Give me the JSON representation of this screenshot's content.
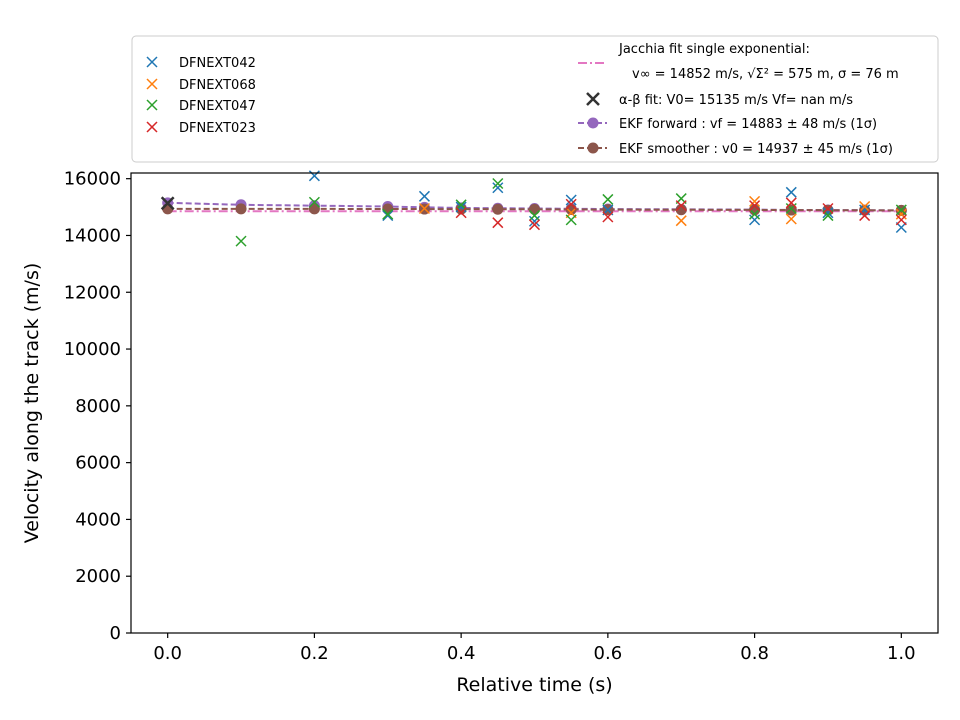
{
  "chart_data": {
    "type": "scatter",
    "xlabel": "Relative time (s)",
    "ylabel": "Velocity along the track (m/s)",
    "xlim": [
      -0.05,
      1.05
    ],
    "ylim": [
      0,
      16200
    ],
    "x_ticks": [
      0.0,
      0.2,
      0.4,
      0.6,
      0.8,
      1.0
    ],
    "x_tick_labels": [
      "0.0",
      "0.2",
      "0.4",
      "0.6",
      "0.8",
      "1.0"
    ],
    "y_ticks": [
      0,
      2000,
      4000,
      6000,
      8000,
      10000,
      12000,
      14000,
      16000
    ],
    "y_tick_labels": [
      "0",
      "2000",
      "4000",
      "6000",
      "8000",
      "10000",
      "12000",
      "14000",
      "16000"
    ],
    "grid": false,
    "legend_left_placement": "top-left",
    "legend_right_placement": "top-right",
    "series": [
      {
        "name": "DFNEXT042",
        "marker": "x",
        "color": "#1f77b4",
        "points": [
          [
            0.0,
            15150
          ],
          [
            0.2,
            16100
          ],
          [
            0.3,
            14700
          ],
          [
            0.35,
            15380
          ],
          [
            0.4,
            15000
          ],
          [
            0.45,
            15680
          ],
          [
            0.5,
            14500
          ],
          [
            0.55,
            15250
          ],
          [
            0.6,
            14900
          ],
          [
            0.8,
            14550
          ],
          [
            0.85,
            15520
          ],
          [
            0.9,
            14800
          ],
          [
            0.95,
            14900
          ],
          [
            1.0,
            14280
          ]
        ]
      },
      {
        "name": "DFNEXT068",
        "marker": "x",
        "color": "#ff7f0e",
        "points": [
          [
            0.35,
            14950
          ],
          [
            0.55,
            14800
          ],
          [
            0.7,
            14520
          ],
          [
            0.8,
            15200
          ],
          [
            0.85,
            14580
          ],
          [
            0.95,
            15020
          ],
          [
            1.0,
            14750
          ]
        ]
      },
      {
        "name": "DFNEXT047",
        "marker": "x",
        "color": "#2ca02c",
        "points": [
          [
            0.1,
            13800
          ],
          [
            0.2,
            15170
          ],
          [
            0.3,
            14750
          ],
          [
            0.4,
            15080
          ],
          [
            0.45,
            15830
          ],
          [
            0.5,
            14700
          ],
          [
            0.55,
            14550
          ],
          [
            0.6,
            15270
          ],
          [
            0.7,
            15300
          ],
          [
            0.8,
            14750
          ],
          [
            0.85,
            14950
          ],
          [
            0.9,
            14700
          ],
          [
            1.0,
            14900
          ]
        ]
      },
      {
        "name": "DFNEXT023",
        "marker": "x",
        "color": "#d62728",
        "points": [
          [
            0.4,
            14800
          ],
          [
            0.45,
            14450
          ],
          [
            0.5,
            14380
          ],
          [
            0.55,
            15100
          ],
          [
            0.6,
            14650
          ],
          [
            0.7,
            15050
          ],
          [
            0.8,
            15050
          ],
          [
            0.85,
            15150
          ],
          [
            0.9,
            14950
          ],
          [
            0.95,
            14700
          ],
          [
            1.0,
            14550
          ]
        ]
      }
    ],
    "jacchia_fit": {
      "label_line1": "Jacchia fit single exponential:",
      "label_line2": "v∞ = 14852 m/s, √Σ² = 575 m, σ = 76 m",
      "color": "#e377c2",
      "style": "dash-dot",
      "x": [
        0.0,
        0.1,
        0.2,
        0.3,
        0.4,
        0.5,
        0.6,
        0.7,
        0.8,
        0.9,
        1.0
      ],
      "y": [
        14855,
        14853,
        14852,
        14852,
        14852,
        14852,
        14852,
        14852,
        14852,
        14852,
        14852
      ]
    },
    "alpha_beta_fit": {
      "label": "α-β fit: V0= 15135 m/s   Vf= nan m/s",
      "color": "#333333",
      "marker": "x",
      "points": [
        [
          0.0,
          15135
        ]
      ]
    },
    "ekf_forward": {
      "label": "EKF forward : vf =  14883 ± 48 m/s (1σ)",
      "color": "#9467bd",
      "style": "dashed",
      "marker": "o",
      "points": [
        [
          0.0,
          15150
        ],
        [
          0.1,
          15080
        ],
        [
          0.2,
          15050
        ],
        [
          0.3,
          15020
        ],
        [
          0.35,
          14990
        ],
        [
          0.4,
          14970
        ],
        [
          0.45,
          14960
        ],
        [
          0.5,
          14950
        ],
        [
          0.55,
          14940
        ],
        [
          0.6,
          14930
        ],
        [
          0.7,
          14920
        ],
        [
          0.8,
          14910
        ],
        [
          0.85,
          14900
        ],
        [
          0.9,
          14895
        ],
        [
          0.95,
          14890
        ],
        [
          1.0,
          14883
        ]
      ]
    },
    "ekf_smoother": {
      "label": "EKF smoother : v0 =  14937 ± 45 m/s (1σ)",
      "color": "#8c564b",
      "style": "dashed",
      "marker": "o",
      "points": [
        [
          0.0,
          14937
        ],
        [
          0.1,
          14937
        ],
        [
          0.2,
          14935
        ],
        [
          0.3,
          14933
        ],
        [
          0.35,
          14930
        ],
        [
          0.4,
          14928
        ],
        [
          0.45,
          14925
        ],
        [
          0.5,
          14920
        ],
        [
          0.55,
          14915
        ],
        [
          0.6,
          14910
        ],
        [
          0.7,
          14905
        ],
        [
          0.8,
          14900
        ],
        [
          0.85,
          14895
        ],
        [
          0.9,
          14890
        ],
        [
          0.95,
          14887
        ],
        [
          1.0,
          14883
        ]
      ]
    }
  }
}
